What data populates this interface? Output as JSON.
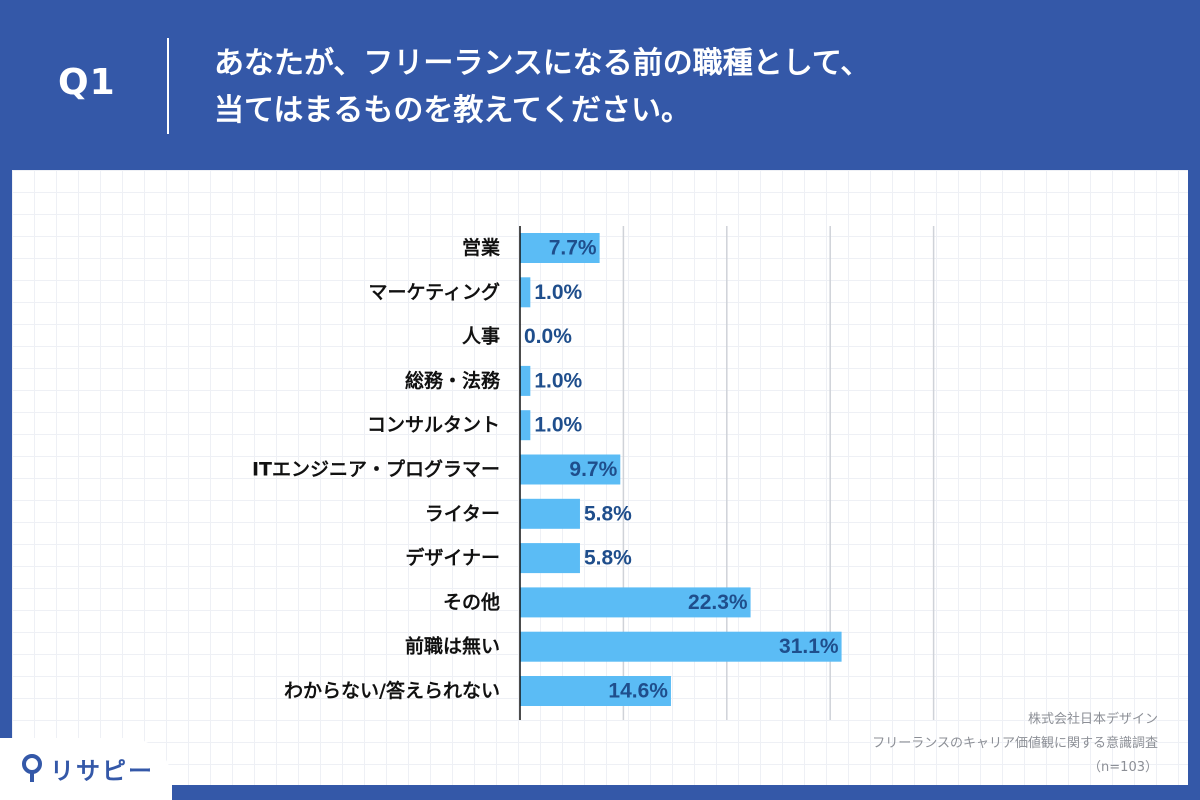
{
  "header": {
    "question_no": "Q1",
    "question_line1": "あなたが、フリーランスになる前の職種として、",
    "question_line2": "当てはまるものを教えてください。"
  },
  "source": {
    "company": "株式会社日本デザイン",
    "survey": "フリーランスのキャリア価値観に関する意識調査",
    "sample": "（n=103）"
  },
  "brand": {
    "logo_text": "リサピー"
  },
  "colors": {
    "background": "#3458a8",
    "bar": "#5bbcf5",
    "value_text": "#1f4e8c",
    "grid": "#cfd2d8"
  },
  "chart_data": {
    "type": "bar",
    "orientation": "horizontal",
    "categories": [
      "営業",
      "マーケティング",
      "人事",
      "総務・法務",
      "コンサルタント",
      "ITエンジニア・プログラマー",
      "ライター",
      "デザイナー",
      "その他",
      "前職は無い",
      "わからない/答えられない"
    ],
    "values": [
      7.7,
      1.0,
      0.0,
      1.0,
      1.0,
      9.7,
      5.8,
      5.8,
      22.3,
      31.1,
      14.6
    ],
    "value_labels": [
      "7.7%",
      "1.0%",
      "0.0%",
      "1.0%",
      "1.0%",
      "9.7%",
      "5.8%",
      "5.8%",
      "22.3%",
      "31.1%",
      "14.6%"
    ],
    "xlim": [
      0,
      40
    ],
    "grid": true
  }
}
